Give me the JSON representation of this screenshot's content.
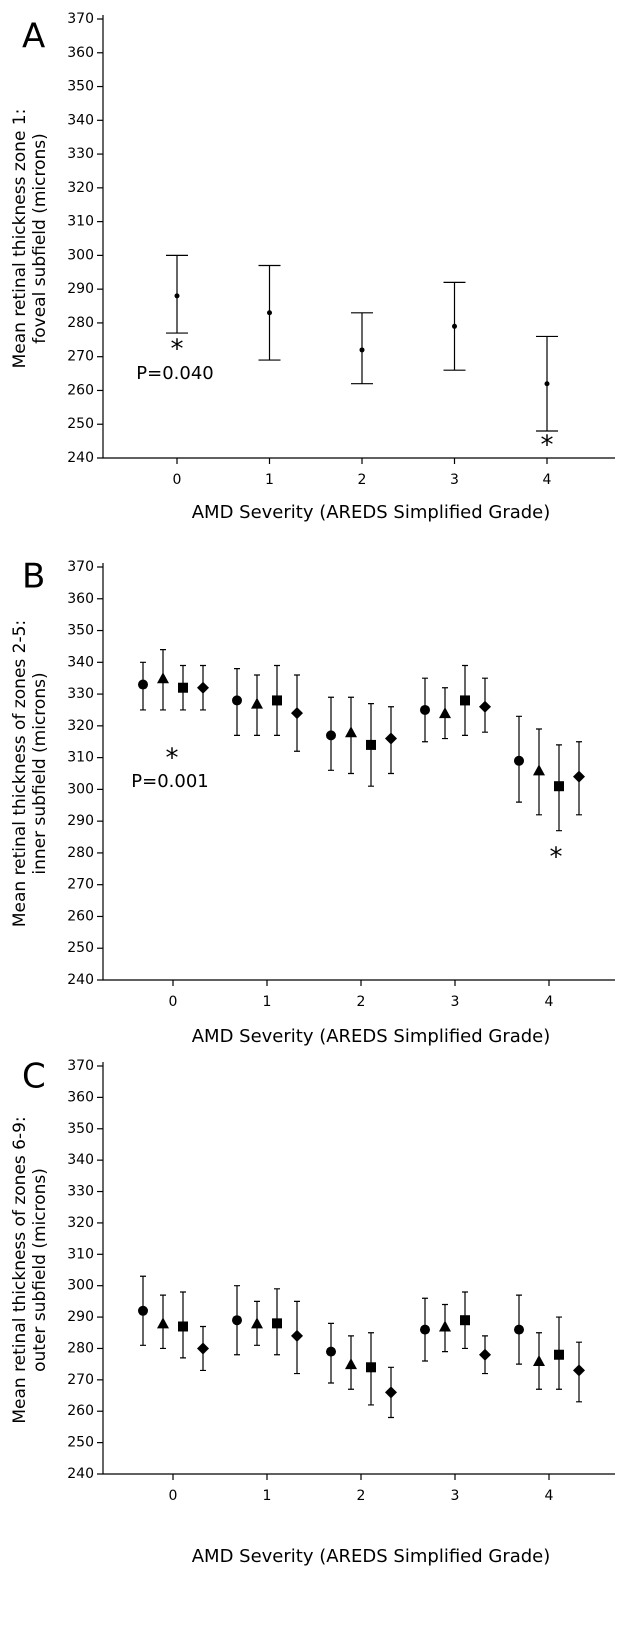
{
  "chart_data": [
    {
      "type": "errorbar",
      "panel_label": "A",
      "y_label": [
        "Mean retinal thickness zone 1:",
        "foveal subfield (microns)"
      ],
      "x_label": "AMD Severity (AREDS Simplified Grade)",
      "categories": [
        "0",
        "1",
        "2",
        "3",
        "4"
      ],
      "values": [
        288,
        283,
        272,
        279,
        262
      ],
      "lower": [
        277,
        269,
        262,
        266,
        248
      ],
      "upper": [
        300,
        297,
        283,
        292,
        276
      ],
      "marker": "dot",
      "color": "#000000",
      "ylim": [
        240,
        370
      ],
      "yticks": [
        240,
        250,
        260,
        270,
        280,
        290,
        300,
        310,
        320,
        330,
        340,
        350,
        360,
        370
      ],
      "annotations": [
        "*",
        "P=0.040",
        "*"
      ]
    },
    {
      "type": "errorbar",
      "panel_label": "B",
      "y_label": [
        "Mean retinal thickness of zones 2-5:",
        "inner subfield (microns)"
      ],
      "x_label": "AMD Severity (AREDS Simplified Grade)",
      "categories": [
        "0",
        "1",
        "2",
        "3",
        "4"
      ],
      "series": [
        {
          "marker": "circle",
          "color": "#000000",
          "values": [
            333,
            328,
            317,
            325,
            309
          ],
          "lower": [
            325,
            317,
            306,
            315,
            296
          ],
          "upper": [
            340,
            338,
            329,
            335,
            323
          ]
        },
        {
          "marker": "triangle",
          "color": "#000000",
          "values": [
            335,
            327,
            318,
            324,
            306
          ],
          "lower": [
            325,
            317,
            305,
            316,
            292
          ],
          "upper": [
            344,
            336,
            329,
            332,
            319
          ]
        },
        {
          "marker": "square",
          "color": "#000000",
          "values": [
            332,
            328,
            314,
            328,
            301
          ],
          "lower": [
            325,
            317,
            301,
            317,
            287
          ],
          "upper": [
            339,
            339,
            327,
            339,
            314
          ]
        },
        {
          "marker": "diamond",
          "color": "#000000",
          "values": [
            332,
            324,
            316,
            326,
            304
          ],
          "lower": [
            325,
            312,
            305,
            318,
            292
          ],
          "upper": [
            339,
            336,
            326,
            335,
            315
          ]
        }
      ],
      "ylim": [
        240,
        370
      ],
      "yticks": [
        240,
        250,
        260,
        270,
        280,
        290,
        300,
        310,
        320,
        330,
        340,
        350,
        360,
        370
      ],
      "annotations": [
        "*",
        "P=0.001",
        "*"
      ]
    },
    {
      "type": "errorbar",
      "panel_label": "C",
      "y_label": [
        "Mean retinal thickness of zones 6-9:",
        "outer subfield (microns)"
      ],
      "x_label": "AMD Severity (AREDS Simplified Grade)",
      "categories": [
        "0",
        "1",
        "2",
        "3",
        "4"
      ],
      "series": [
        {
          "marker": "circle",
          "color": "#000000",
          "values": [
            292,
            289,
            279,
            286,
            286
          ],
          "lower": [
            281,
            278,
            269,
            276,
            275
          ],
          "upper": [
            303,
            300,
            288,
            296,
            297
          ]
        },
        {
          "marker": "triangle",
          "color": "#000000",
          "values": [
            288,
            288,
            275,
            287,
            276
          ],
          "lower": [
            280,
            281,
            267,
            279,
            267
          ],
          "upper": [
            297,
            295,
            284,
            294,
            285
          ]
        },
        {
          "marker": "square",
          "color": "#000000",
          "values": [
            287,
            288,
            274,
            289,
            278
          ],
          "lower": [
            277,
            278,
            262,
            280,
            267
          ],
          "upper": [
            298,
            299,
            285,
            298,
            290
          ]
        },
        {
          "marker": "diamond",
          "color": "#000000",
          "values": [
            280,
            284,
            266,
            278,
            273
          ],
          "lower": [
            273,
            272,
            258,
            272,
            263
          ],
          "upper": [
            287,
            295,
            274,
            284,
            282
          ]
        }
      ],
      "ylim": [
        240,
        370
      ],
      "yticks": [
        240,
        250,
        260,
        270,
        280,
        290,
        300,
        310,
        320,
        330,
        340,
        350,
        360,
        370
      ],
      "annotations": []
    }
  ]
}
